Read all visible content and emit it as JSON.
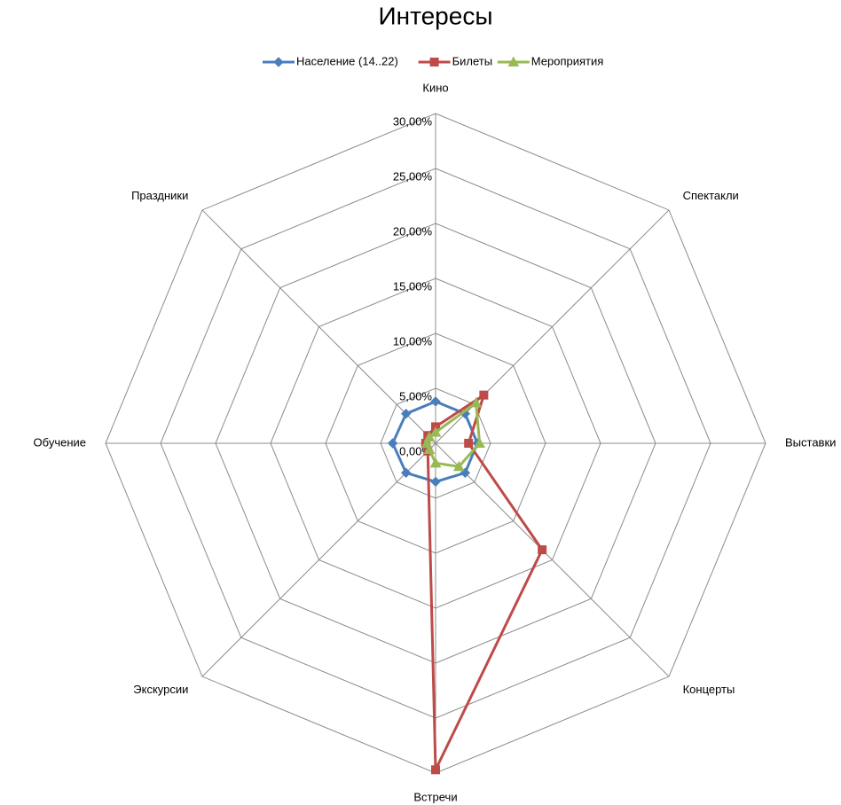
{
  "chart_data": {
    "type": "radar",
    "title": "Интересы",
    "categories": [
      "Кино",
      "Спектакли",
      "Выставки",
      "Концерты",
      "Встречи",
      "Экскурсии",
      "Обучение",
      "Праздники"
    ],
    "series": [
      {
        "name": "Население (14..22)",
        "color": "#4a7ebb",
        "marker": "diamond",
        "values": [
          3.8,
          3.8,
          3.8,
          3.8,
          3.5,
          3.8,
          3.9,
          3.8
        ]
      },
      {
        "name": "Билеты",
        "color": "#be4b48",
        "marker": "square",
        "values": [
          1.5,
          6.2,
          3.0,
          13.7,
          29.7,
          1.0,
          0.9,
          1.0
        ]
      },
      {
        "name": "Мероприятия",
        "color": "#98b954",
        "marker": "triangle",
        "values": [
          1.0,
          5.2,
          4.0,
          3.0,
          1.8,
          0.8,
          0.8,
          0.8
        ]
      }
    ],
    "ylim": [
      0,
      30
    ],
    "yticks": [
      {
        "value": 0,
        "label": "0,00%"
      },
      {
        "value": 5,
        "label": "5,00%"
      },
      {
        "value": 10,
        "label": "10,00%"
      },
      {
        "value": 15,
        "label": "15,00%"
      },
      {
        "value": 20,
        "label": "20,00%"
      },
      {
        "value": 25,
        "label": "25,00%"
      },
      {
        "value": 30,
        "label": "30,00%"
      }
    ],
    "grid": true,
    "legend": "top"
  }
}
